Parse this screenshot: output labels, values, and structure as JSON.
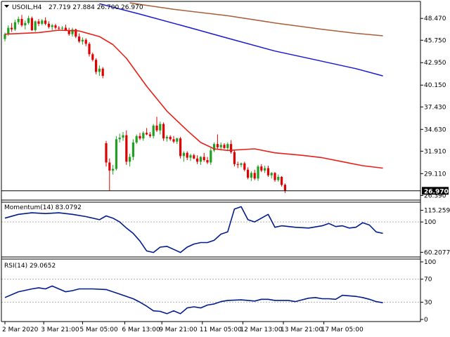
{
  "colors": {
    "background": "#ffffff",
    "frame": "#000000",
    "bull": "#22a022",
    "bear": "#e00000",
    "ma_fast": "#e8201a",
    "ma_mid": "#1a1ad0",
    "ma_slow": "#a85f3a",
    "indicator": "#001c8c",
    "level_line": "#b0b0b0",
    "price_line": "#000000"
  },
  "chart_data": [
    {
      "type": "candlestick",
      "symbol_label": "USOIL,H4",
      "ohlc_label": "27.719 27.884 26.700 26.970",
      "ylim": [
        25.9,
        50.5
      ],
      "yticks": [
        "48.470",
        "45.750",
        "42.950",
        "40.150",
        "37.430",
        "34.630",
        "31.910",
        "29.110",
        "26.390"
      ],
      "ytick_values": [
        48.47,
        45.75,
        42.95,
        40.15,
        37.43,
        34.63,
        31.91,
        29.11,
        26.39
      ],
      "last_price": "26.970",
      "last_price_value": 26.97,
      "x_count": 84,
      "candles": [
        [
          45.9,
          46.7,
          45.6,
          46.5
        ],
        [
          46.5,
          47.6,
          46.3,
          47.3
        ],
        [
          47.3,
          47.9,
          46.8,
          47.1
        ],
        [
          47.1,
          48.3,
          46.9,
          48.0
        ],
        [
          48.0,
          48.7,
          47.7,
          48.4
        ],
        [
          48.4,
          48.9,
          47.4,
          47.6
        ],
        [
          47.6,
          48.2,
          47.1,
          47.9
        ],
        [
          47.9,
          48.8,
          47.7,
          48.5
        ],
        [
          48.5,
          48.7,
          46.9,
          47.0
        ],
        [
          47.0,
          48.2,
          46.8,
          48.1
        ],
        [
          48.1,
          48.4,
          47.5,
          47.8
        ],
        [
          47.8,
          48.4,
          47.6,
          48.2
        ],
        [
          48.2,
          48.6,
          47.6,
          47.8
        ],
        [
          47.8,
          48.1,
          47.2,
          47.4
        ],
        [
          47.4,
          47.8,
          47.0,
          47.6
        ],
        [
          47.6,
          47.8,
          47.1,
          47.3
        ],
        [
          47.3,
          47.5,
          47.0,
          47.2
        ],
        [
          47.2,
          47.5,
          47.0,
          47.3
        ],
        [
          47.3,
          47.7,
          46.9,
          47.0
        ],
        [
          47.0,
          47.3,
          46.3,
          46.5
        ],
        [
          46.5,
          47.3,
          46.2,
          47.1
        ],
        [
          47.1,
          47.2,
          46.0,
          46.2
        ],
        [
          46.2,
          46.6,
          45.4,
          45.6
        ],
        [
          45.6,
          46.1,
          45.2,
          45.8
        ],
        [
          45.8,
          46.0,
          45.0,
          45.3
        ],
        [
          45.3,
          45.5,
          43.7,
          44.0
        ],
        [
          44.0,
          44.2,
          43.1,
          43.3
        ],
        [
          43.3,
          43.5,
          41.5,
          41.8
        ],
        [
          41.8,
          42.6,
          41.3,
          42.2
        ],
        [
          42.2,
          42.4,
          41.0,
          41.3
        ],
        [
          32.9,
          33.2,
          30.0,
          30.5
        ],
        [
          30.5,
          31.0,
          27.0,
          29.5
        ],
        [
          29.5,
          30.2,
          29.0,
          29.7
        ],
        [
          29.7,
          33.8,
          29.5,
          33.4
        ],
        [
          33.4,
          34.1,
          33.0,
          33.6
        ],
        [
          33.6,
          34.3,
          33.2,
          33.9
        ],
        [
          33.9,
          34.5,
          30.2,
          30.6
        ],
        [
          30.6,
          31.6,
          30.0,
          31.2
        ],
        [
          31.2,
          33.4,
          30.8,
          33.0
        ],
        [
          33.0,
          34.0,
          32.8,
          33.8
        ],
        [
          33.8,
          34.2,
          33.3,
          33.5
        ],
        [
          33.5,
          34.4,
          33.2,
          34.2
        ],
        [
          34.2,
          34.8,
          33.9,
          34.0
        ],
        [
          34.0,
          34.3,
          33.6,
          33.8
        ],
        [
          33.8,
          35.3,
          33.5,
          35.1
        ],
        [
          35.1,
          36.2,
          34.3,
          34.5
        ],
        [
          34.5,
          35.6,
          34.0,
          35.3
        ],
        [
          35.3,
          35.5,
          33.2,
          33.5
        ],
        [
          33.5,
          33.9,
          33.1,
          33.7
        ],
        [
          33.7,
          33.9,
          33.2,
          33.4
        ],
        [
          33.4,
          33.8,
          32.9,
          33.1
        ],
        [
          33.1,
          33.6,
          32.8,
          33.5
        ],
        [
          33.5,
          33.7,
          31.0,
          31.3
        ],
        [
          31.3,
          31.9,
          30.6,
          31.7
        ],
        [
          31.7,
          31.9,
          30.8,
          31.1
        ],
        [
          31.1,
          31.6,
          30.7,
          31.4
        ],
        [
          31.4,
          31.6,
          30.9,
          31.0
        ],
        [
          31.0,
          31.4,
          30.3,
          30.6
        ],
        [
          30.6,
          31.3,
          30.2,
          31.2
        ],
        [
          31.2,
          31.7,
          30.6,
          30.8
        ],
        [
          30.8,
          31.2,
          30.3,
          30.5
        ],
        [
          30.5,
          32.3,
          30.2,
          32.0
        ],
        [
          32.0,
          33.0,
          31.8,
          32.8
        ],
        [
          32.8,
          34.0,
          32.2,
          32.4
        ],
        [
          32.4,
          33.0,
          32.0,
          32.7
        ],
        [
          32.7,
          32.9,
          32.2,
          32.3
        ],
        [
          32.3,
          33.0,
          32.0,
          32.8
        ],
        [
          32.8,
          33.3,
          31.6,
          31.8
        ],
        [
          31.8,
          32.0,
          30.0,
          30.3
        ],
        [
          30.3,
          30.6,
          29.8,
          30.2
        ],
        [
          30.2,
          30.5,
          29.9,
          30.4
        ],
        [
          30.4,
          30.6,
          29.4,
          29.6
        ],
        [
          29.6,
          29.9,
          28.4,
          28.6
        ],
        [
          28.6,
          29.4,
          28.2,
          29.2
        ],
        [
          29.2,
          29.6,
          28.3,
          28.5
        ],
        [
          28.5,
          30.2,
          28.2,
          30.0
        ],
        [
          30.0,
          30.3,
          29.3,
          29.5
        ],
        [
          29.5,
          30.1,
          29.2,
          29.8
        ],
        [
          29.8,
          30.1,
          28.7,
          28.9
        ],
        [
          28.9,
          29.3,
          28.5,
          29.2
        ],
        [
          29.2,
          29.3,
          28.1,
          28.3
        ],
        [
          28.3,
          29.0,
          28.1,
          28.7
        ],
        [
          28.7,
          28.8,
          27.5,
          27.7
        ],
        [
          27.719,
          27.884,
          26.7,
          26.97
        ]
      ],
      "ma_fast": [
        [
          0,
          46.5
        ],
        [
          10,
          46.7
        ],
        [
          16,
          47.0
        ],
        [
          22,
          46.9
        ],
        [
          28,
          46.2
        ],
        [
          32,
          45.2
        ],
        [
          36,
          43.5
        ],
        [
          42,
          40.0
        ],
        [
          48,
          36.9
        ],
        [
          54,
          34.5
        ],
        [
          58,
          33.0
        ],
        [
          62,
          32.2
        ],
        [
          66,
          32.0
        ],
        [
          74,
          32.2
        ],
        [
          80,
          31.7
        ],
        [
          88,
          31.4
        ],
        [
          94,
          31.1
        ],
        [
          100,
          30.6
        ],
        [
          106,
          30.1
        ],
        [
          112,
          29.8
        ]
      ],
      "ma_mid": [
        [
          28,
          50.3
        ],
        [
          40,
          49.0
        ],
        [
          54,
          47.4
        ],
        [
          66,
          46.0
        ],
        [
          80,
          44.4
        ],
        [
          92,
          43.3
        ],
        [
          104,
          42.2
        ],
        [
          112,
          41.3
        ]
      ],
      "ma_slow": [
        [
          37,
          50.4
        ],
        [
          50,
          49.6
        ],
        [
          66,
          48.8
        ],
        [
          80,
          47.9
        ],
        [
          94,
          47.1
        ],
        [
          104,
          46.6
        ],
        [
          112,
          46.3
        ]
      ]
    },
    {
      "type": "line",
      "label": "Momentum(14) 83.0792",
      "ylim": [
        55,
        125
      ],
      "yticks": [
        "115.2599",
        "100",
        "60.2077"
      ],
      "ytick_values": [
        115.26,
        100,
        60.21
      ],
      "level": 100,
      "points": [
        [
          0,
          105
        ],
        [
          4,
          110
        ],
        [
          8,
          112
        ],
        [
          12,
          111
        ],
        [
          16,
          112
        ],
        [
          20,
          110
        ],
        [
          24,
          107
        ],
        [
          28,
          103
        ],
        [
          30,
          108
        ],
        [
          32,
          105
        ],
        [
          34,
          100
        ],
        [
          36,
          92
        ],
        [
          38,
          85
        ],
        [
          40,
          75
        ],
        [
          42,
          62
        ],
        [
          44,
          60
        ],
        [
          46,
          67
        ],
        [
          48,
          68
        ],
        [
          50,
          64
        ],
        [
          52,
          60
        ],
        [
          54,
          67
        ],
        [
          56,
          71
        ],
        [
          58,
          73
        ],
        [
          60,
          73
        ],
        [
          62,
          76
        ],
        [
          64,
          84
        ],
        [
          66,
          87
        ],
        [
          68,
          117
        ],
        [
          70,
          120
        ],
        [
          72,
          103
        ],
        [
          74,
          100
        ],
        [
          76,
          105
        ],
        [
          78,
          110
        ],
        [
          80,
          93
        ],
        [
          82,
          95
        ],
        [
          86,
          93
        ],
        [
          90,
          92
        ],
        [
          94,
          95
        ],
        [
          96,
          98
        ],
        [
          98,
          94
        ],
        [
          100,
          95
        ],
        [
          102,
          92
        ],
        [
          104,
          93
        ],
        [
          106,
          99
        ],
        [
          108,
          96
        ],
        [
          110,
          87
        ],
        [
          112,
          85
        ]
      ]
    },
    {
      "type": "line",
      "label": "RSI(14) 29.0652",
      "ylim": [
        0,
        100
      ],
      "yticks": [
        "100",
        "70",
        "30",
        "0"
      ],
      "ytick_values": [
        100,
        70,
        30,
        0
      ],
      "levels": [
        70,
        30
      ],
      "points": [
        [
          0,
          38
        ],
        [
          4,
          48
        ],
        [
          8,
          53
        ],
        [
          10,
          55
        ],
        [
          12,
          53
        ],
        [
          14,
          58
        ],
        [
          16,
          53
        ],
        [
          18,
          48
        ],
        [
          20,
          50
        ],
        [
          22,
          53
        ],
        [
          26,
          53
        ],
        [
          30,
          52
        ],
        [
          32,
          48
        ],
        [
          34,
          44
        ],
        [
          38,
          36
        ],
        [
          40,
          30
        ],
        [
          42,
          23
        ],
        [
          44,
          15
        ],
        [
          46,
          14
        ],
        [
          48,
          10
        ],
        [
          50,
          15
        ],
        [
          52,
          10
        ],
        [
          54,
          20
        ],
        [
          56,
          22
        ],
        [
          58,
          20
        ],
        [
          60,
          25
        ],
        [
          62,
          27
        ],
        [
          64,
          31
        ],
        [
          66,
          33
        ],
        [
          70,
          34
        ],
        [
          74,
          32
        ],
        [
          76,
          35
        ],
        [
          78,
          35
        ],
        [
          80,
          33
        ],
        [
          84,
          33
        ],
        [
          86,
          31
        ],
        [
          88,
          34
        ],
        [
          90,
          37
        ],
        [
          92,
          38
        ],
        [
          94,
          36
        ],
        [
          96,
          36
        ],
        [
          98,
          35
        ],
        [
          100,
          42
        ],
        [
          104,
          40
        ],
        [
          106,
          38
        ],
        [
          108,
          35
        ],
        [
          110,
          31
        ],
        [
          112,
          29
        ]
      ]
    }
  ],
  "time_axis": {
    "labels": [
      "2 Mar 2020",
      "3 Mar 21:00",
      "5 Mar 05:00",
      "6 Mar 13:00",
      "9 Mar 21:00",
      "11 Mar 05:00",
      "12 Mar 13:00",
      "13 Mar 21:00",
      "17 Mar 05:00"
    ],
    "positions": [
      0,
      11.5,
      23,
      35.5,
      46.5,
      58.5,
      70.5,
      82.5,
      94.5
    ]
  }
}
